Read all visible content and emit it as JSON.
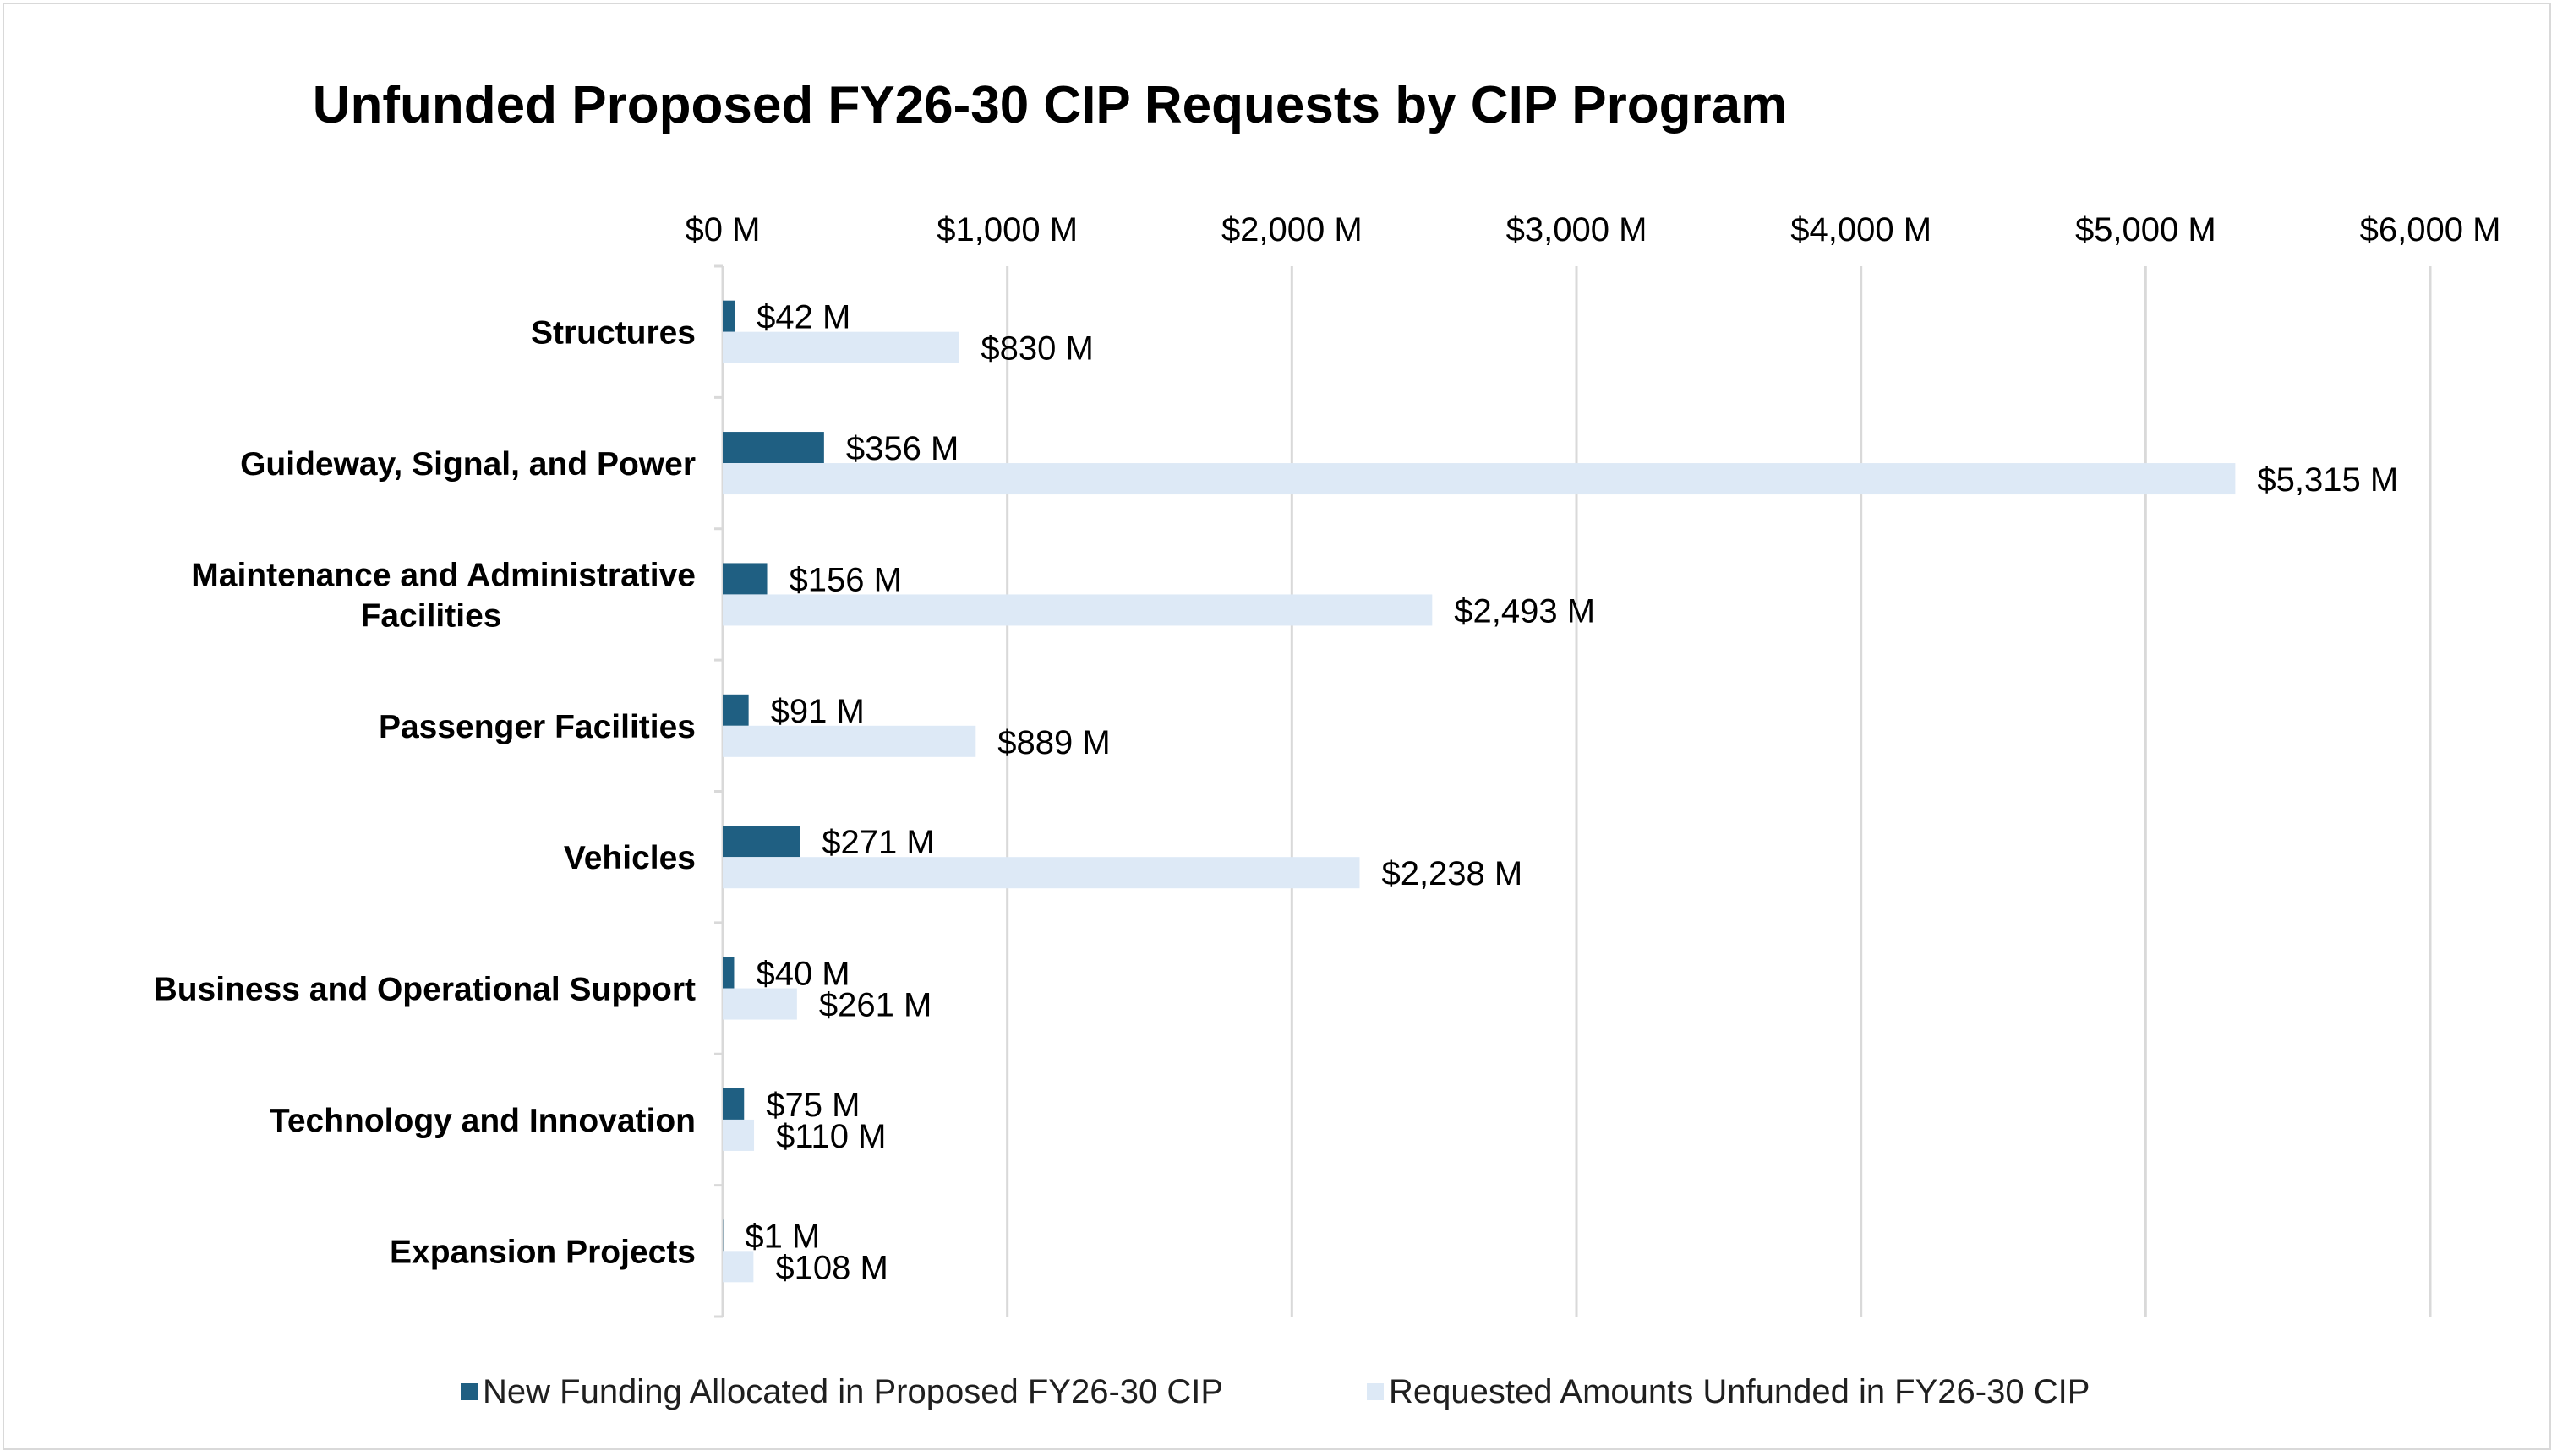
{
  "chart_data": {
    "type": "bar",
    "orientation": "horizontal",
    "title": "Unfunded Proposed FY26-30 CIP Requests by CIP Program",
    "xlabel": "",
    "ylabel": "",
    "xlim": [
      0,
      6000
    ],
    "x_ticks": [
      0,
      1000,
      2000,
      3000,
      4000,
      5000,
      6000
    ],
    "x_tick_labels": [
      "$0 M",
      "$1,000 M",
      "$2,000 M",
      "$3,000 M",
      "$4,000 M",
      "$5,000 M",
      "$6,000 M"
    ],
    "x_axis_position": "top",
    "grid": true,
    "legend_position": "bottom",
    "categories": [
      [
        "Structures"
      ],
      [
        "Guideway, Signal, and Power"
      ],
      [
        "Maintenance and Administrative",
        "Facilities"
      ],
      [
        "Passenger Facilities"
      ],
      [
        "Vehicles"
      ],
      [
        "Business and Operational Support"
      ],
      [
        "Technology and Innovation"
      ],
      [
        "Expansion Projects"
      ]
    ],
    "series": [
      {
        "name": "New Funding Allocated in Proposed FY26-30 CIP",
        "color": "#1f5f82",
        "values": [
          42,
          356,
          156,
          91,
          271,
          40,
          75,
          1
        ],
        "labels": [
          "$42 M",
          "$356 M",
          "$156 M",
          "$91 M",
          "$271 M",
          "$40 M",
          "$75 M",
          "$1 M"
        ]
      },
      {
        "name": "Requested Amounts Unfunded in FY26-30 CIP",
        "color": "#dde9f6",
        "values": [
          830,
          5315,
          2493,
          889,
          2238,
          261,
          110,
          108
        ],
        "labels": [
          "$830 M",
          "$5,315 M",
          "$2,493 M",
          "$889 M",
          "$2,238 M",
          "$261 M",
          "$110 M",
          "$108 M"
        ]
      }
    ]
  }
}
